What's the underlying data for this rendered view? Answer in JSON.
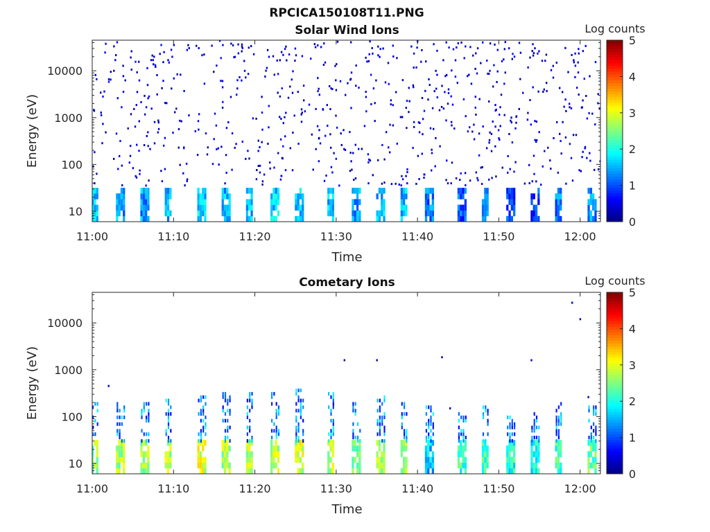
{
  "figure": {
    "title": "RPCICA150108T11.PNG"
  },
  "chart_data": [
    {
      "type": "heatmap",
      "title": "Solar Wind Ions",
      "xlabel": "Time",
      "ylabel": "Energy (eV)",
      "x_ticks": [
        "11:00",
        "11:10",
        "11:20",
        "11:30",
        "11:40",
        "11:50",
        "12:00"
      ],
      "y_ticks": [
        "10",
        "100",
        "1000",
        "10000"
      ],
      "y_scale": "log",
      "ylim": [
        6,
        45000
      ],
      "colorbar": {
        "label": "Log counts",
        "ticks": [
          "0",
          "1",
          "2",
          "3",
          "4",
          "5"
        ],
        "range": [
          0,
          5
        ],
        "colormap": "jet"
      },
      "sweep_period_min": 3.2,
      "bursts": [
        {
          "t": "11:00",
          "e_min": 6,
          "e_max": 30,
          "log_counts": 1.6
        },
        {
          "t": "11:03",
          "e_min": 6,
          "e_max": 30,
          "log_counts": 1.4
        },
        {
          "t": "11:06",
          "e_min": 6,
          "e_max": 30,
          "log_counts": 1.4
        },
        {
          "t": "11:09",
          "e_min": 6,
          "e_max": 30,
          "log_counts": 1.5
        },
        {
          "t": "11:13",
          "e_min": 6,
          "e_max": 30,
          "log_counts": 1.7
        },
        {
          "t": "11:16",
          "e_min": 6,
          "e_max": 30,
          "log_counts": 1.5
        },
        {
          "t": "11:19",
          "e_min": 6,
          "e_max": 30,
          "log_counts": 1.6
        },
        {
          "t": "11:22",
          "e_min": 6,
          "e_max": 30,
          "log_counts": 1.6
        },
        {
          "t": "11:25",
          "e_min": 6,
          "e_max": 30,
          "log_counts": 1.7
        },
        {
          "t": "11:29",
          "e_min": 6,
          "e_max": 30,
          "log_counts": 1.6
        },
        {
          "t": "11:32",
          "e_min": 6,
          "e_max": 30,
          "log_counts": 1.3
        },
        {
          "t": "11:35",
          "e_min": 6,
          "e_max": 30,
          "log_counts": 1.6
        },
        {
          "t": "11:38",
          "e_min": 6,
          "e_max": 30,
          "log_counts": 1.5
        },
        {
          "t": "11:41",
          "e_min": 6,
          "e_max": 30,
          "log_counts": 1.2
        },
        {
          "t": "11:45",
          "e_min": 6,
          "e_max": 30,
          "log_counts": 1.0
        },
        {
          "t": "11:48",
          "e_min": 6,
          "e_max": 30,
          "log_counts": 1.1
        },
        {
          "t": "11:51",
          "e_min": 6,
          "e_max": 30,
          "log_counts": 1.1
        },
        {
          "t": "11:54",
          "e_min": 6,
          "e_max": 30,
          "log_counts": 1.0
        },
        {
          "t": "11:57",
          "e_min": 6,
          "e_max": 30,
          "log_counts": 1.2
        },
        {
          "t": "12:01",
          "e_min": 6,
          "e_max": 30,
          "log_counts": 1.3
        }
      ],
      "background_counts": "sparse single pixels at log counts ~0.3-0.9 spanning 35 eV to 45000 eV"
    },
    {
      "type": "heatmap",
      "title": "Cometary Ions",
      "xlabel": "Time",
      "ylabel": "Energy (eV)",
      "x_ticks": [
        "11:00",
        "11:10",
        "11:20",
        "11:30",
        "11:40",
        "11:50",
        "12:00"
      ],
      "y_ticks": [
        "10",
        "100",
        "1000",
        "10000"
      ],
      "y_scale": "log",
      "ylim": [
        6,
        45000
      ],
      "colorbar": {
        "label": "Log counts",
        "ticks": [
          "0",
          "1",
          "2",
          "3",
          "4",
          "5"
        ],
        "range": [
          0,
          5
        ],
        "colormap": "jet"
      },
      "sweep_period_min": 3.2,
      "bursts": [
        {
          "t": "11:00",
          "e_min": 6,
          "e_max": 28,
          "log_counts": 2.6,
          "tail_e_max": 200
        },
        {
          "t": "11:03",
          "e_min": 6,
          "e_max": 28,
          "log_counts": 2.7,
          "tail_e_max": 220
        },
        {
          "t": "11:06",
          "e_min": 6,
          "e_max": 28,
          "log_counts": 2.6,
          "tail_e_max": 200
        },
        {
          "t": "11:09",
          "e_min": 6,
          "e_max": 28,
          "log_counts": 2.7,
          "tail_e_max": 220
        },
        {
          "t": "11:13",
          "e_min": 6,
          "e_max": 28,
          "log_counts": 2.9,
          "tail_e_max": 300
        },
        {
          "t": "11:16",
          "e_min": 6,
          "e_max": 28,
          "log_counts": 2.7,
          "tail_e_max": 300
        },
        {
          "t": "11:19",
          "e_min": 6,
          "e_max": 28,
          "log_counts": 2.8,
          "tail_e_max": 300
        },
        {
          "t": "11:22",
          "e_min": 6,
          "e_max": 28,
          "log_counts": 2.8,
          "tail_e_max": 300
        },
        {
          "t": "11:25",
          "e_min": 6,
          "e_max": 28,
          "log_counts": 2.9,
          "tail_e_max": 350
        },
        {
          "t": "11:29",
          "e_min": 6,
          "e_max": 28,
          "log_counts": 2.8,
          "tail_e_max": 300
        },
        {
          "t": "11:32",
          "e_min": 6,
          "e_max": 28,
          "log_counts": 2.5,
          "tail_e_max": 200
        },
        {
          "t": "11:35",
          "e_min": 6,
          "e_max": 28,
          "log_counts": 2.7,
          "tail_e_max": 250
        },
        {
          "t": "11:38",
          "e_min": 6,
          "e_max": 28,
          "log_counts": 2.6,
          "tail_e_max": 200
        },
        {
          "t": "11:41",
          "e_min": 6,
          "e_max": 28,
          "log_counts": 1.6,
          "tail_e_max": 150
        },
        {
          "t": "11:45",
          "e_min": 6,
          "e_max": 28,
          "log_counts": 2.1,
          "tail_e_max": 120
        },
        {
          "t": "11:48",
          "e_min": 6,
          "e_max": 28,
          "log_counts": 2.2,
          "tail_e_max": 150
        },
        {
          "t": "11:51",
          "e_min": 6,
          "e_max": 28,
          "log_counts": 2.0,
          "tail_e_max": 100
        },
        {
          "t": "11:54",
          "e_min": 6,
          "e_max": 28,
          "log_counts": 1.9,
          "tail_e_max": 120
        },
        {
          "t": "11:57",
          "e_min": 6,
          "e_max": 28,
          "log_counts": 2.2,
          "tail_e_max": 200
        },
        {
          "t": "12:01",
          "e_min": 6,
          "e_max": 28,
          "log_counts": 2.4,
          "tail_e_max": 150
        }
      ],
      "isolated_points": [
        {
          "t": "11:02",
          "e": 450,
          "log_counts": 0.3
        },
        {
          "t": "11:31",
          "e": 1600,
          "log_counts": 0.3
        },
        {
          "t": "11:35",
          "e": 1600,
          "log_counts": 0.3
        },
        {
          "t": "11:43",
          "e": 1850,
          "log_counts": 0.3
        },
        {
          "t": "11:44",
          "e": 150,
          "log_counts": 0.3
        },
        {
          "t": "11:54",
          "e": 1600,
          "log_counts": 0.3
        },
        {
          "t": "11:59",
          "e": 27000,
          "log_counts": 0.3
        },
        {
          "t": "12:00",
          "e": 12000,
          "log_counts": 0.3
        },
        {
          "t": "12:01",
          "e": 260,
          "log_counts": 0.3
        }
      ]
    }
  ]
}
